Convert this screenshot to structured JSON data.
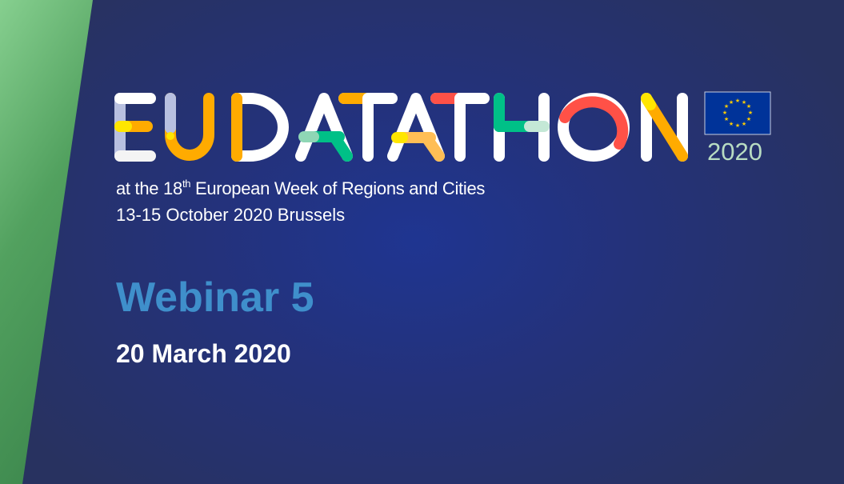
{
  "logo": {
    "text": "EUDATATHON",
    "year": "2020",
    "flag": "eu-flag-icon"
  },
  "event": {
    "subtitle_prefix": "at the 18",
    "subtitle_sup": "th",
    "subtitle_suffix": " European Week of Regions and Cities",
    "dates": "13-15 October 2020 Brussels"
  },
  "webinar": {
    "title": "Webinar 5",
    "date": "20 March 2020"
  },
  "colors": {
    "background": "#283260",
    "accent_blue": "#3f8fcb",
    "green_panel": "#5aaa68",
    "orange": "#ffab00",
    "red": "#ff5147",
    "green": "#00c087",
    "lavender": "#b8c0e0"
  }
}
